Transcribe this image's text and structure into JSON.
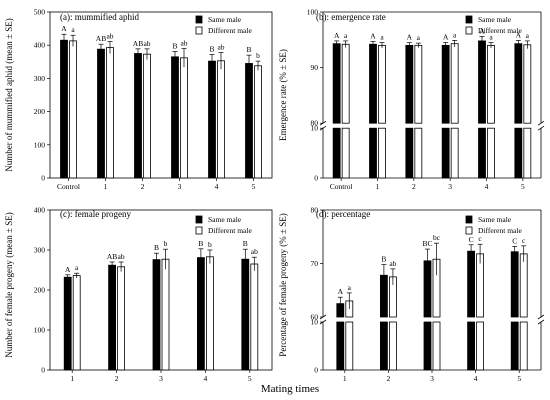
{
  "figure": {
    "shared_xlabel": "Mating times",
    "series_colors": {
      "same": "#000000",
      "different": "#ffffff"
    }
  },
  "chart_data": [
    {
      "type": "bar",
      "title": "(a): mummified aphid",
      "ylabel": "Number of mummified aphid (mean ± SE)",
      "categories": [
        "Control",
        "1",
        "2",
        "3",
        "4",
        "5"
      ],
      "ylim": [
        0,
        500
      ],
      "yticks": [
        0,
        100,
        200,
        300,
        400,
        500
      ],
      "legend": {
        "position": "top-right"
      },
      "series": [
        {
          "name": "Same male",
          "values": [
            415,
            388,
            375,
            365,
            352,
            345
          ],
          "errors": [
            18,
            15,
            14,
            16,
            20,
            25
          ],
          "letters": [
            "A",
            "AB",
            "AB",
            "B",
            "B",
            "B"
          ]
        },
        {
          "name": "Different male",
          "values": [
            413,
            393,
            373,
            362,
            353,
            338
          ],
          "errors": [
            17,
            18,
            16,
            28,
            25,
            14
          ],
          "letters": [
            "a",
            "ab",
            "ab",
            "ab",
            "ab",
            "b"
          ]
        }
      ]
    },
    {
      "type": "bar",
      "title": "(b): emergence rate",
      "ylabel": "Emergence rate (% ± SE)",
      "categories": [
        "Control",
        "1",
        "2",
        "3",
        "4",
        "5"
      ],
      "axis_break": true,
      "lower_range": [
        0,
        10
      ],
      "lower_ticks": [
        0,
        10
      ],
      "upper_range": [
        80,
        100
      ],
      "upper_ticks": [
        80,
        90,
        100
      ],
      "legend": {
        "position": "top-right"
      },
      "series": [
        {
          "name": "Same male",
          "values": [
            94.3,
            94.2,
            94.0,
            94.0,
            94.8,
            94.3
          ],
          "errors": [
            0.5,
            0.5,
            0.5,
            0.5,
            0.8,
            0.6
          ],
          "letters": [
            "A",
            "A",
            "A",
            "A",
            "A",
            "A"
          ]
        },
        {
          "name": "Different male",
          "values": [
            94.2,
            94.0,
            94.0,
            94.3,
            94.0,
            94.1
          ],
          "errors": [
            0.6,
            0.5,
            0.4,
            0.6,
            0.5,
            0.7
          ],
          "letters": [
            "a",
            "a",
            "a",
            "a",
            "a",
            "a"
          ]
        }
      ]
    },
    {
      "type": "bar",
      "title": "(c): female progeny",
      "ylabel": "Number of female progeny (mean ± SE)",
      "categories": [
        "1",
        "2",
        "3",
        "4",
        "5"
      ],
      "ylim": [
        0,
        400
      ],
      "yticks": [
        0,
        100,
        200,
        300,
        400
      ],
      "legend": {
        "position": "top-right"
      },
      "series": [
        {
          "name": "Same male",
          "values": [
            232,
            262,
            276,
            281,
            277
          ],
          "errors": [
            6,
            8,
            16,
            22,
            25
          ],
          "letters": [
            "A",
            "AB",
            "B",
            "B",
            "B"
          ]
        },
        {
          "name": "Different male",
          "values": [
            236,
            258,
            277,
            283,
            265
          ],
          "errors": [
            6,
            12,
            25,
            17,
            17
          ],
          "letters": [
            "a",
            "ab",
            "b",
            "b",
            "ab"
          ]
        }
      ]
    },
    {
      "type": "bar",
      "title": "(d): percentage",
      "ylabel": "Percentage of female progeny (% ± SE)",
      "categories": [
        "1",
        "2",
        "3",
        "4",
        "5"
      ],
      "axis_break": true,
      "lower_range": [
        0,
        10
      ],
      "lower_ticks": [
        0,
        10
      ],
      "upper_range": [
        60,
        80
      ],
      "upper_ticks": [
        60,
        70,
        80
      ],
      "legend": {
        "position": "top-right"
      },
      "series": [
        {
          "name": "Same male",
          "values": [
            62.5,
            67.8,
            70.5,
            72.3,
            72.2
          ],
          "errors": [
            1.2,
            2.0,
            2.2,
            1.2,
            1.0
          ],
          "letters": [
            "A",
            "B",
            "BC",
            "C",
            "C"
          ]
        },
        {
          "name": "Different male",
          "values": [
            63.0,
            67.5,
            70.8,
            71.8,
            71.8
          ],
          "errors": [
            1.5,
            1.5,
            3.0,
            1.8,
            1.5
          ],
          "letters": [
            "a",
            "ab",
            "bc",
            "c",
            "c"
          ]
        }
      ]
    }
  ]
}
